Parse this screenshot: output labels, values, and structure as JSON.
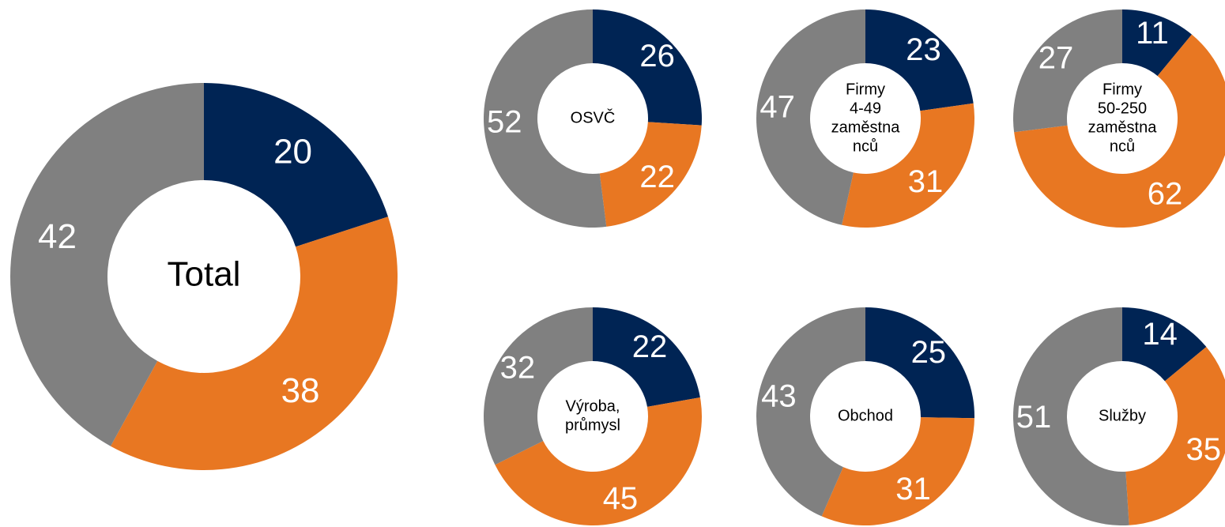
{
  "chart_data": [
    {
      "type": "donut",
      "title": [
        "Total"
      ],
      "values": [
        20,
        38,
        42
      ],
      "colors": [
        "#002454",
        "#e87722",
        "#808080"
      ]
    },
    {
      "type": "donut",
      "title": [
        "OSVČ"
      ],
      "values": [
        26,
        22,
        52
      ],
      "colors": [
        "#002454",
        "#e87722",
        "#808080"
      ]
    },
    {
      "type": "donut",
      "title": [
        "Firmy",
        "4-49",
        "zaměstna",
        "nců"
      ],
      "values": [
        23,
        31,
        47
      ],
      "colors": [
        "#002454",
        "#e87722",
        "#808080"
      ]
    },
    {
      "type": "donut",
      "title": [
        "Firmy",
        "50-250",
        "zaměstna",
        "nců"
      ],
      "values": [
        11,
        62,
        27
      ],
      "colors": [
        "#002454",
        "#e87722",
        "#808080"
      ]
    },
    {
      "type": "donut",
      "title": [
        "Výroba,",
        "průmysl"
      ],
      "values": [
        22,
        45,
        32
      ],
      "colors": [
        "#002454",
        "#e87722",
        "#808080"
      ]
    },
    {
      "type": "donut",
      "title": [
        "Obchod"
      ],
      "values": [
        25,
        31,
        43
      ],
      "colors": [
        "#002454",
        "#e87722",
        "#808080"
      ]
    },
    {
      "type": "donut",
      "title": [
        "Služby"
      ],
      "values": [
        14,
        35,
        51
      ],
      "colors": [
        "#002454",
        "#e87722",
        "#808080"
      ]
    }
  ]
}
